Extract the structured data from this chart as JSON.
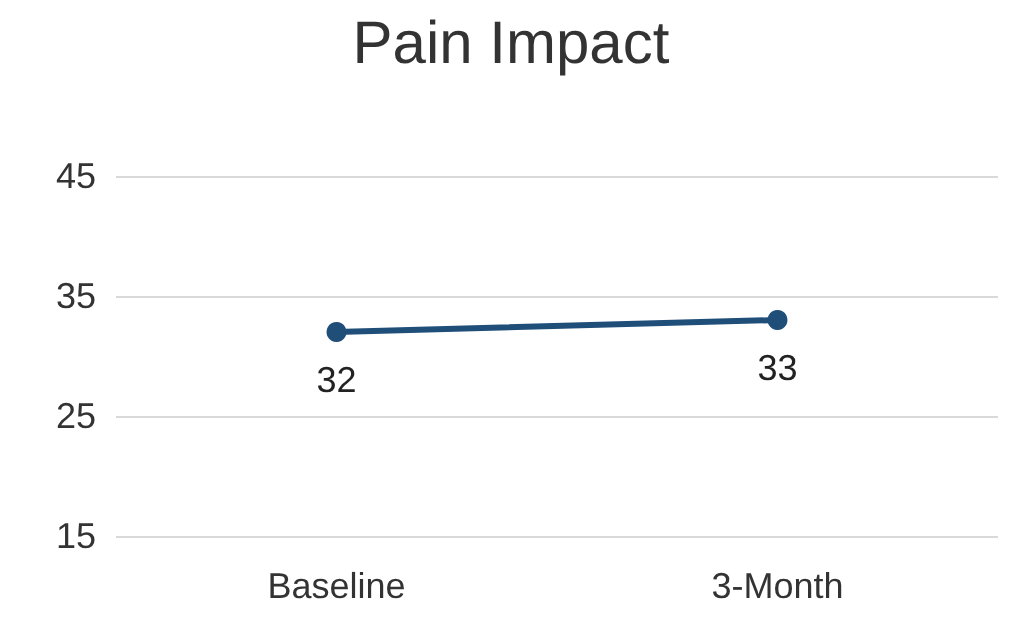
{
  "chart_data": {
    "type": "line",
    "title": "Pain Impact",
    "categories": [
      "Baseline",
      "3-Month"
    ],
    "series": [
      {
        "color": "#1f4e79",
        "values": [
          32,
          33
        ]
      }
    ],
    "ylim": [
      15,
      45
    ],
    "yticks": [
      15,
      25,
      35,
      45
    ],
    "grid": "y",
    "marker": "circle",
    "data_labels": true
  }
}
